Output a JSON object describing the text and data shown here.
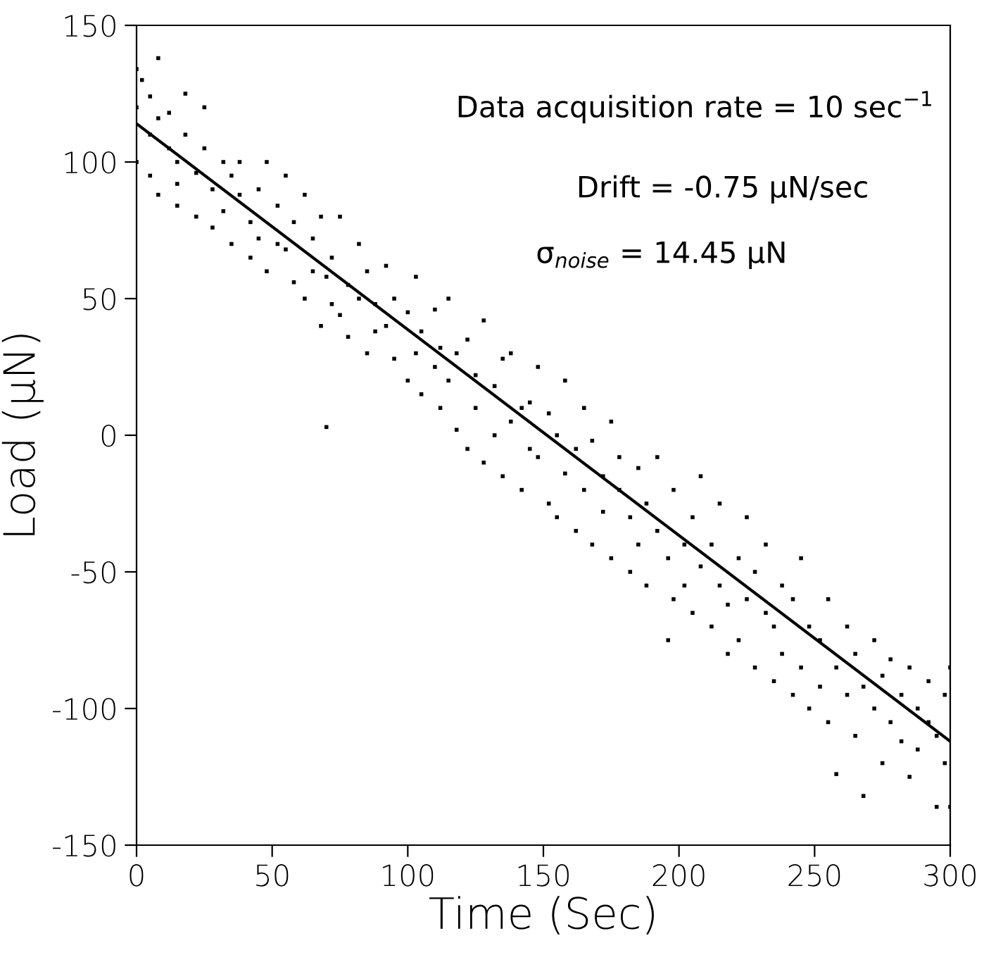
{
  "chart_data": {
    "type": "scatter",
    "xlabel": "Time (Sec)",
    "ylabel": "Load (μN)",
    "xlim": [
      0,
      300
    ],
    "ylim": [
      -150,
      150
    ],
    "xticks": [
      0,
      50,
      100,
      150,
      200,
      250,
      300
    ],
    "yticks": [
      -150,
      -100,
      -50,
      0,
      50,
      100,
      150
    ],
    "grid": false,
    "legend": false,
    "series": [
      {
        "marker": "square",
        "color": "#000000",
        "x": [
          0,
          0,
          0,
          2,
          5,
          5,
          5,
          8,
          8,
          8,
          12,
          12,
          15,
          15,
          15,
          18,
          18,
          22,
          22,
          25,
          25,
          28,
          28,
          32,
          32,
          35,
          35,
          38,
          38,
          42,
          42,
          45,
          45,
          48,
          48,
          52,
          52,
          55,
          55,
          58,
          58,
          62,
          62,
          65,
          65,
          68,
          68,
          70,
          70,
          72,
          72,
          75,
          75,
          78,
          78,
          82,
          82,
          85,
          85,
          88,
          88,
          92,
          92,
          95,
          95,
          100,
          100,
          103,
          103,
          105,
          105,
          110,
          110,
          112,
          112,
          115,
          115,
          118,
          118,
          122,
          122,
          125,
          125,
          128,
          128,
          132,
          132,
          135,
          135,
          138,
          138,
          142,
          142,
          145,
          145,
          148,
          148,
          152,
          152,
          155,
          155,
          158,
          158,
          162,
          162,
          165,
          165,
          168,
          168,
          172,
          172,
          175,
          175,
          178,
          178,
          182,
          182,
          185,
          185,
          188,
          188,
          192,
          192,
          196,
          196,
          198,
          198,
          202,
          202,
          205,
          205,
          208,
          208,
          212,
          212,
          215,
          215,
          218,
          218,
          222,
          222,
          225,
          225,
          228,
          228,
          232,
          232,
          235,
          235,
          238,
          238,
          242,
          242,
          245,
          245,
          248,
          248,
          252,
          252,
          255,
          255,
          258,
          258,
          262,
          262,
          265,
          265,
          268,
          268,
          272,
          272,
          275,
          275,
          278,
          278,
          282,
          282,
          285,
          285,
          288,
          288,
          292,
          292,
          295,
          295,
          298,
          298,
          300,
          300
        ],
        "values": [
          134,
          120,
          100,
          130,
          124,
          110,
          95,
          138,
          116,
          88,
          105,
          118,
          100,
          92,
          84,
          125,
          110,
          96,
          80,
          120,
          105,
          90,
          76,
          100,
          82,
          70,
          95,
          88,
          100,
          78,
          65,
          90,
          72,
          100,
          60,
          84,
          70,
          68,
          95,
          78,
          56,
          88,
          50,
          72,
          60,
          40,
          80,
          3,
          58,
          65,
          48,
          80,
          44,
          55,
          36,
          70,
          50,
          30,
          60,
          48,
          38,
          62,
          40,
          28,
          50,
          45,
          20,
          30,
          58,
          38,
          15,
          46,
          25,
          10,
          32,
          50,
          20,
          2,
          30,
          35,
          -5,
          22,
          10,
          42,
          -10,
          18,
          0,
          -15,
          28,
          5,
          30,
          -20,
          10,
          12,
          -5,
          -8,
          25,
          -25,
          8,
          0,
          -30,
          -14,
          20,
          -5,
          -35,
          10,
          -20,
          -40,
          -2,
          -15,
          -28,
          -45,
          5,
          -20,
          -8,
          -50,
          -30,
          -12,
          -40,
          -55,
          -25,
          -35,
          -8,
          -75,
          -45,
          -20,
          -60,
          -40,
          -55,
          -30,
          -65,
          -48,
          -15,
          -70,
          -40,
          -55,
          -25,
          -80,
          -62,
          -45,
          -75,
          -60,
          -30,
          -85,
          -50,
          -65,
          -40,
          -90,
          -70,
          -55,
          -80,
          -95,
          -60,
          -45,
          -85,
          -100,
          -70,
          -75,
          -92,
          -105,
          -60,
          -124,
          -85,
          -95,
          -70,
          -110,
          -80,
          -132,
          -92,
          -100,
          -75,
          -120,
          -88,
          -82,
          -105,
          -112,
          -95,
          -125,
          -85,
          -100,
          -115,
          -90,
          -105,
          -136,
          -110,
          -95,
          -120,
          -136,
          -85
        ]
      },
      {
        "type": "line",
        "color": "#000000",
        "marker": "none",
        "line_style": "solid",
        "x": [
          0,
          300
        ],
        "values": [
          114,
          -112
        ]
      }
    ],
    "annotations": [
      "Data acquisition rate = 10 sec$^{−1}$",
      "Drift = -0.75 μN/sec",
      "σ$_{noise}$ = 14.45 μN"
    ]
  }
}
